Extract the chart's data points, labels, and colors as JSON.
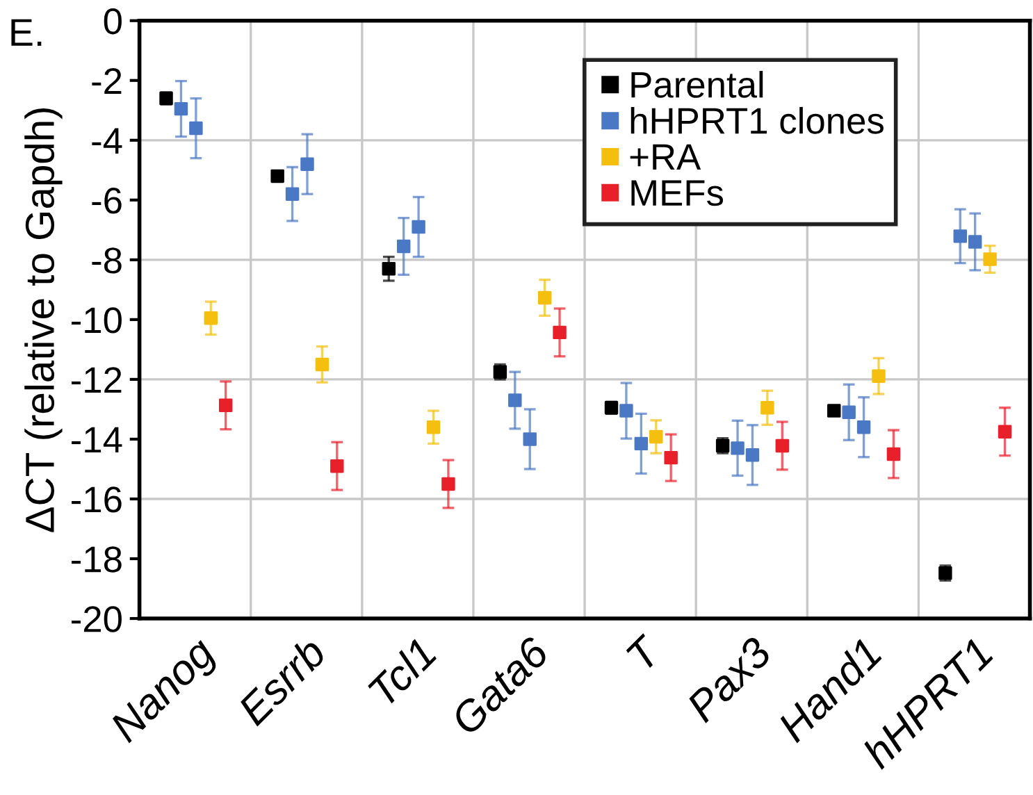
{
  "chart_data": {
    "type": "scatter",
    "ylabel": "ΔCT (relative to Gapdh)",
    "annotations": [
      "E."
    ],
    "categories": [
      "Nanog",
      "Esrrb",
      "Tcl1",
      "Gata6",
      "T",
      "Pax3",
      "Hand1",
      "hHPRT1"
    ],
    "ylim": [
      -20,
      0
    ],
    "yticks": [
      0,
      -2,
      -4,
      -6,
      -8,
      -10,
      -12,
      -14,
      -16,
      -18,
      -20
    ],
    "grid": "x",
    "legend": "top right",
    "marker": "square",
    "ref_lines": [
      {
        "axis": "y",
        "value": -4,
        "color": "#c8c8c8"
      },
      {
        "axis": "y",
        "value": -8,
        "color": "#c8c8c8"
      },
      {
        "axis": "y",
        "value": -12,
        "color": "#c8c8c8"
      },
      {
        "axis": "y",
        "value": -16,
        "color": "#c8c8c8"
      }
    ],
    "series": [
      {
        "name": "Parental",
        "color": "#000000",
        "values": [
          -2.6,
          -5.2,
          -8.3,
          -11.75,
          -12.95,
          -14.22,
          -13.05,
          -18.48
        ],
        "errors": [
          0.2,
          0.1,
          0.4,
          0.25,
          0.2,
          0.25,
          0.1,
          0.25
        ]
      },
      {
        "name": "hHPRT1 clones",
        "color": "#4a78c4",
        "values": [
          -2.95,
          -5.8,
          -7.55,
          -12.7,
          -13.05,
          -14.3,
          -13.1,
          -7.21
        ],
        "errors": [
          0.93,
          0.9,
          0.95,
          0.95,
          0.93,
          0.92,
          0.93,
          0.9
        ]
      },
      {
        "color": "#4a78c4",
        "values": [
          -3.6,
          -4.8,
          -6.9,
          -14.0,
          -14.15,
          -14.53,
          -13.6,
          -7.4
        ],
        "errors": [
          1.0,
          1.0,
          1.0,
          1.0,
          1.0,
          1.0,
          1.0,
          0.95
        ]
      },
      {
        "name": "+RA",
        "color": "#f5bf0f",
        "values": [
          -9.95,
          -11.5,
          -13.6,
          -9.27,
          -13.92,
          -12.95,
          -11.89,
          -7.98
        ],
        "errors": [
          0.55,
          0.6,
          0.55,
          0.6,
          0.55,
          0.57,
          0.6,
          0.45
        ]
      },
      {
        "name": "MEFs",
        "color": "#e8202a",
        "values": [
          -12.87,
          -14.9,
          -15.5,
          -10.43,
          -14.62,
          -14.22,
          -14.5,
          -13.75
        ],
        "errors": [
          0.8,
          0.8,
          0.8,
          0.8,
          0.78,
          0.8,
          0.8,
          0.8
        ]
      }
    ]
  }
}
